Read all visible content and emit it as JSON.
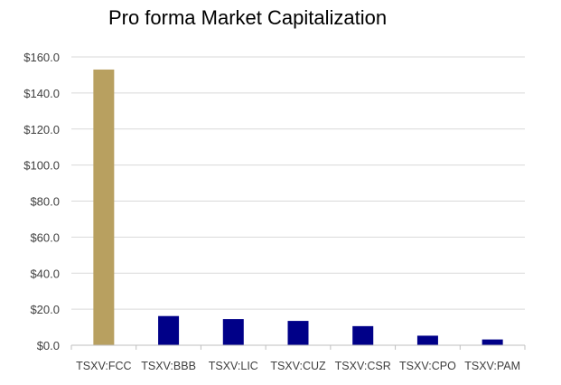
{
  "chart_data": {
    "type": "bar",
    "title": "Pro forma Market Capitalization",
    "xlabel": "",
    "ylabel": "",
    "categories": [
      "TSXV:FCC",
      "TSXV:BBB",
      "TSXV:LIC",
      "TSXV:CUZ",
      "TSXV:CSR",
      "TSXV:CPO",
      "TSXV:PAM"
    ],
    "values": [
      153.0,
      16.2,
      14.5,
      13.5,
      10.6,
      5.3,
      3.2
    ],
    "ylim": [
      0,
      160
    ],
    "yticks": [
      "$0.0",
      "$20.0",
      "$40.0",
      "$60.0",
      "$80.0",
      "$100.0",
      "$120.0",
      "$140.0",
      "$160.0"
    ],
    "ytick_values": [
      0,
      20,
      40,
      60,
      80,
      100,
      120,
      140,
      160
    ],
    "grid": true,
    "legend": "none",
    "colors": {
      "highlight": "#B8A060",
      "bar": "#000088",
      "grid": "#D9D9D9",
      "axis": "#BFBFBF"
    }
  }
}
